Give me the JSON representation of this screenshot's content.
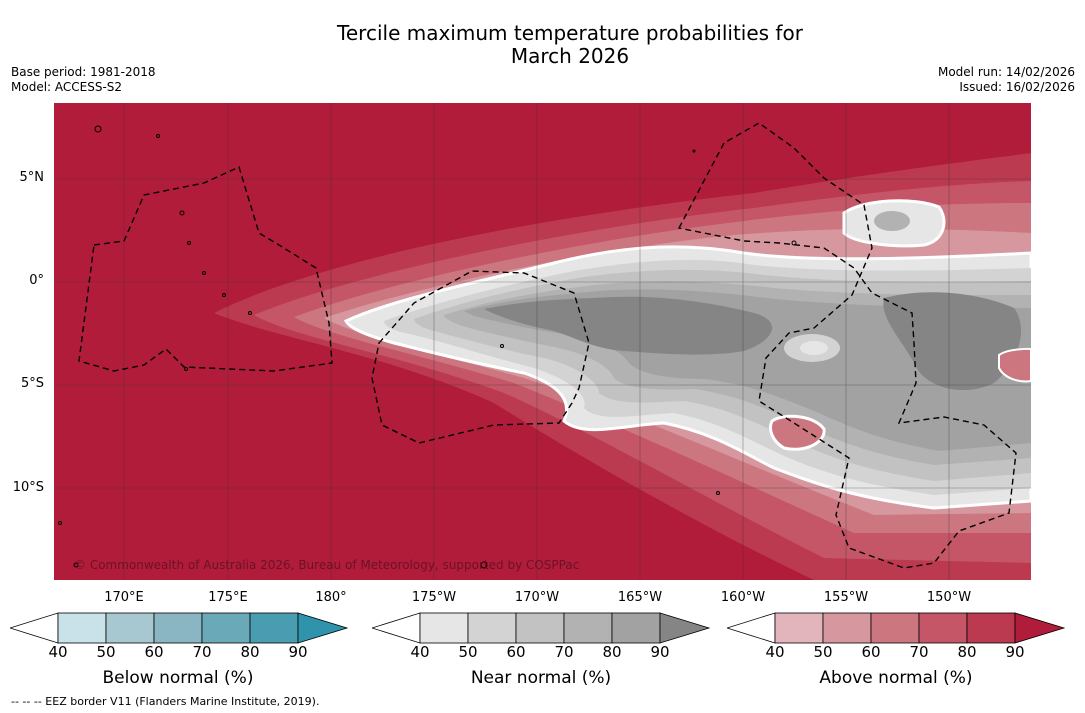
{
  "title": {
    "line1": "Tercile maximum temperature probabilities for",
    "line2": "March 2026"
  },
  "meta": {
    "base_period": "Base period: 1981-2018",
    "model": "Model: ACCESS-S2",
    "model_run": "Model run: 14/02/2026",
    "issued": "Issued: 16/02/2026"
  },
  "map": {
    "copyright": "© Commonwealth of Australia 2026, Bureau of Meteorology, supported by COSPPac",
    "lat_labels": [
      "5°N",
      "0°",
      "5°S",
      "10°S"
    ],
    "lon_labels": [
      "170°E",
      "175°E",
      "180°",
      "175°W",
      "170°W",
      "165°W",
      "160°W",
      "155°W",
      "150°W"
    ]
  },
  "legend": {
    "below": {
      "title": "Below normal (%)",
      "ticks": [
        "40",
        "50",
        "60",
        "70",
        "80",
        "90"
      ],
      "colors": [
        "#ffffff",
        "#c9e1e8",
        "#a7c8d0",
        "#89b6c2",
        "#6aa9b8",
        "#4a9db0",
        "#2e93ab"
      ]
    },
    "near": {
      "title": "Near normal (%)",
      "ticks": [
        "40",
        "50",
        "60",
        "70",
        "80",
        "90"
      ],
      "colors": [
        "#ffffff",
        "#e6e6e6",
        "#d3d3d3",
        "#c2c2c2",
        "#b2b2b2",
        "#a2a2a2",
        "#858585"
      ]
    },
    "above": {
      "title": "Above normal (%)",
      "ticks": [
        "40",
        "50",
        "60",
        "70",
        "80",
        "90"
      ],
      "colors": [
        "#ffffff",
        "#e2b5bc",
        "#d7979f",
        "#cc7680",
        "#c45668",
        "#bb3a50",
        "#b11c3b"
      ]
    }
  },
  "footer": "--  --  -- EEZ border V11 (Flanders Marine Institute, 2019)."
}
